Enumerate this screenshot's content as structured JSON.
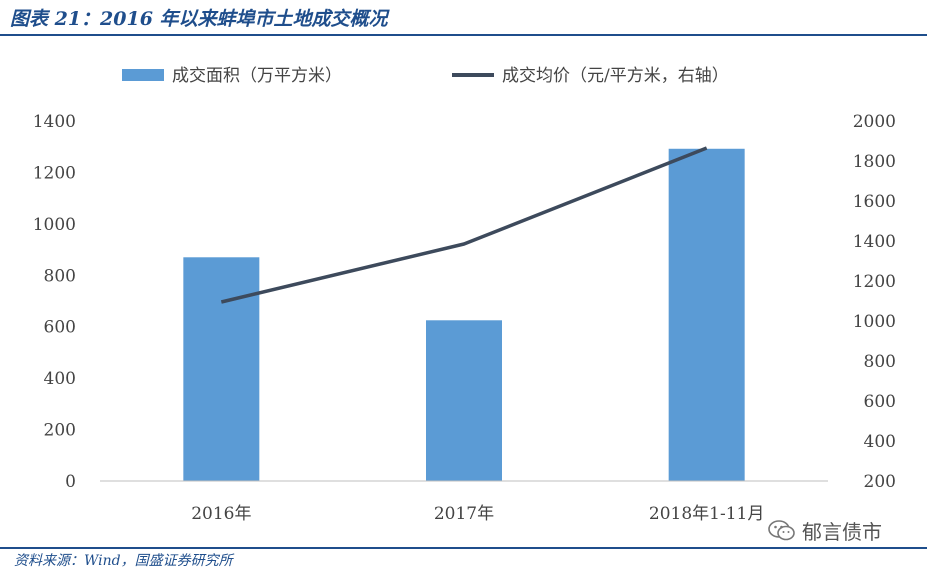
{
  "title": "图表 21：2016 年以来蚌埠市土地成交概况",
  "source": "资料来源：Wind，国盛证券研究所",
  "watermark": "郁言债市",
  "colors": {
    "bar": "#5b9bd5",
    "line": "#3d4a5c",
    "accent": "#1f4e8c"
  },
  "chart_data": {
    "type": "bar",
    "categories": [
      "2016年",
      "2017年",
      "2018年1-11月"
    ],
    "series": [
      {
        "name": "成交面积（万平方米）",
        "type": "bar",
        "axis": "left",
        "values": [
          870,
          625,
          1292
        ]
      },
      {
        "name": "成交均价（元/平方米，右轴）",
        "type": "line",
        "axis": "right",
        "values": [
          1095,
          1385,
          1865
        ]
      }
    ],
    "y_left": {
      "min": 0,
      "max": 1400,
      "ticks": [
        0,
        200,
        400,
        600,
        800,
        1000,
        1200,
        1400
      ]
    },
    "y_right": {
      "min": 200,
      "max": 2000,
      "ticks": [
        200,
        400,
        600,
        800,
        1000,
        1200,
        1400,
        1600,
        1800,
        2000
      ]
    },
    "legend_position": "top",
    "grid": false
  }
}
